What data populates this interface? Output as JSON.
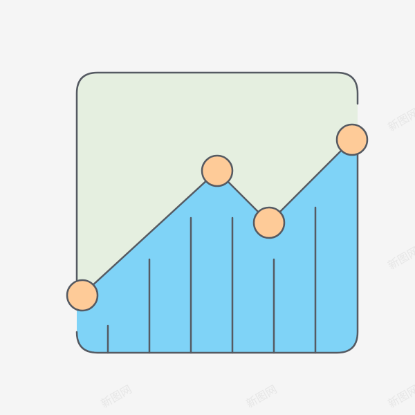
{
  "watermark": "新图网",
  "colors": {
    "background": "#f5f5f5",
    "frame_fill": "#e5efe0",
    "area_fill": "#7fd3f7",
    "marker_fill": "#fecb98",
    "stroke": "#555a62"
  },
  "icons": [
    "line-chart-icon"
  ]
}
